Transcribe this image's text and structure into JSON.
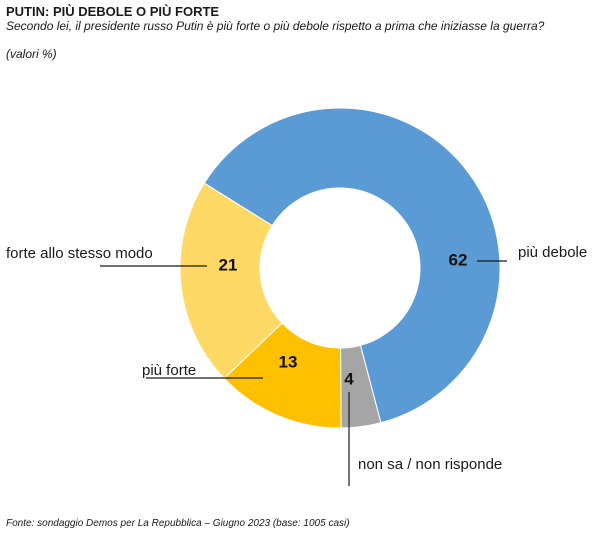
{
  "title": "PUTIN: PIÙ DEBOLE O PIÙ FORTE",
  "subtitle": "Secondo lei, il presidente russo Putin è più forte o più debole rispetto a prima che iniziasse la guerra?",
  "unit_note": "(valori %)",
  "source": "Fonte: sondaggio Demos per La Repubblica – Giugno 2023 (base: 1005 casi)",
  "chart_data": {
    "type": "pie",
    "style": "donut",
    "slices": [
      {
        "label": "più debole",
        "value": 62,
        "color": "#5B9BD5"
      },
      {
        "label": "non sa / non risponde",
        "value": 4,
        "color": "#A5A5A5"
      },
      {
        "label": "più forte",
        "value": 13,
        "color": "#FFC000"
      },
      {
        "label": "forte allo stesso modo",
        "value": 21,
        "color": "#FFD966"
      }
    ]
  }
}
